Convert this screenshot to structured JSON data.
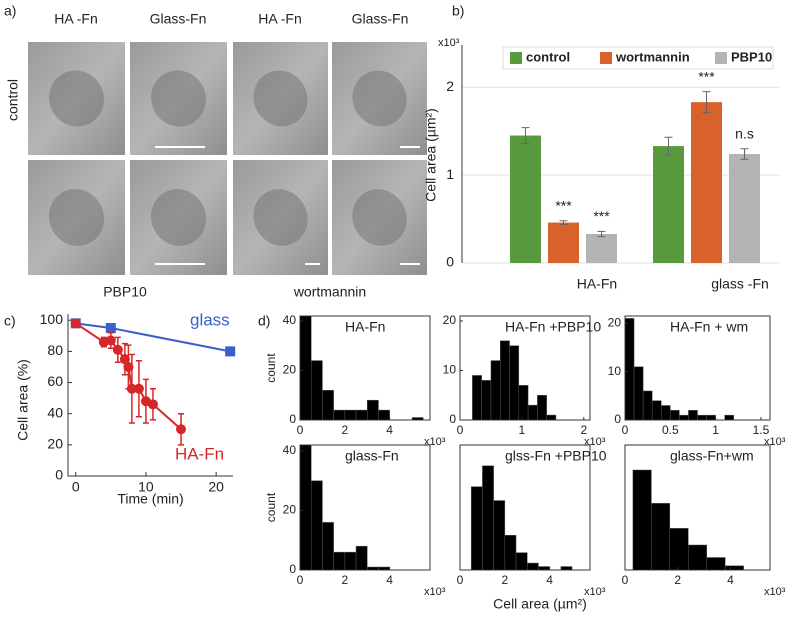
{
  "panel_a": {
    "label": "a)",
    "column_labels": [
      "HA -Fn",
      "Glass-Fn",
      "HA -Fn",
      "Glass-Fn"
    ],
    "row_label": "control",
    "bottom_labels": [
      "PBP10",
      "wortmannin"
    ]
  },
  "panel_d": {
    "label": "d)",
    "xlabel": "Cell area (µm²)"
  },
  "chart_data": [
    {
      "type": "bar",
      "label": "b)",
      "ylabel": "Cell area (µm²)",
      "y_multiplier": "x10³",
      "categories": [
        "HA-Fn",
        "glass -Fn"
      ],
      "series": [
        {
          "name": "control",
          "color": "#5a9a3e",
          "values": [
            1.45,
            1.33
          ],
          "errors": [
            0.09,
            0.1
          ]
        },
        {
          "name": "wortmannin",
          "color": "#d9622b",
          "values": [
            0.46,
            1.83
          ],
          "errors": [
            0.02,
            0.12
          ]
        },
        {
          "name": "PBP10",
          "color": "#b3b3b3",
          "values": [
            0.33,
            1.24
          ],
          "errors": [
            0.03,
            0.06
          ]
        }
      ],
      "annotations": [
        "***",
        "***",
        "***",
        "n.s"
      ],
      "ylim": [
        0,
        2.48
      ],
      "yticks": [
        0,
        1,
        2
      ],
      "grid": true,
      "legend": "top"
    },
    {
      "type": "line",
      "label": "c)",
      "xlabel": "Time (min)",
      "ylabel": "Cell area (%)",
      "series": [
        {
          "name": "glass",
          "color": "#3a5fcd",
          "marker": "square",
          "x": [
            0,
            5,
            22
          ],
          "values": [
            98,
            95,
            80
          ]
        },
        {
          "name": "HA-Fn",
          "color": "#d62728",
          "marker": "circle",
          "x": [
            0,
            4,
            5,
            6,
            7,
            7.5,
            8,
            9,
            10,
            11,
            15
          ],
          "values": [
            98,
            86,
            87,
            81,
            75,
            70,
            56,
            56,
            48,
            46,
            30
          ],
          "errors": [
            null,
            3,
            5,
            8,
            10,
            14,
            22,
            18,
            14,
            10,
            10
          ]
        }
      ],
      "xlim": [
        -1.1,
        22.4
      ],
      "xticks": [
        0,
        10,
        20
      ],
      "ylim": [
        0,
        104
      ],
      "yticks": [
        0,
        20,
        40,
        60,
        80,
        100
      ]
    },
    {
      "type": "histogram",
      "title": "HA-Fn",
      "ylabel": "count",
      "x_multiplier": "x10³",
      "bins": [
        0,
        0.5,
        1,
        1.5,
        2,
        2.5,
        3,
        3.5,
        4,
        4.5,
        5,
        5.5
      ],
      "values": [
        42,
        24,
        12,
        4,
        4,
        4,
        8,
        4,
        0,
        0,
        1
      ],
      "xlim": [
        0,
        5.8
      ],
      "xticks": [
        0,
        2,
        4
      ],
      "ylim": [
        0,
        42
      ],
      "yticks": [
        0,
        20,
        40
      ]
    },
    {
      "type": "histogram",
      "title": "HA-Fn +PBP10",
      "x_multiplier": "x10³",
      "bins": [
        0.2,
        0.35,
        0.5,
        0.65,
        0.8,
        0.95,
        1.1,
        1.25,
        1.4,
        1.55
      ],
      "values": [
        9,
        8,
        12,
        16,
        15,
        7,
        3,
        5,
        1
      ],
      "xlim": [
        0,
        2.1
      ],
      "xticks": [
        0,
        1,
        2
      ],
      "ylim": [
        0,
        21
      ],
      "yticks": [
        0,
        10,
        20
      ]
    },
    {
      "type": "histogram",
      "title": "HA-Fn +   wm",
      "x_multiplier": "x10³",
      "bins": [
        0,
        0.1,
        0.2,
        0.3,
        0.4,
        0.5,
        0.6,
        0.7,
        0.8,
        0.9,
        1,
        1.1,
        1.2
      ],
      "values": [
        21,
        11,
        6,
        4,
        3,
        2,
        1,
        2,
        1,
        1,
        0,
        1
      ],
      "xlim": [
        0,
        1.6
      ],
      "xticks": [
        0,
        0.5,
        1,
        1.5
      ],
      "ylim": [
        0,
        21.5
      ],
      "yticks": [
        0,
        10,
        20
      ]
    },
    {
      "type": "histogram",
      "title": "glass-Fn",
      "ylabel": "count",
      "x_multiplier": "x10³",
      "bins": [
        0,
        0.5,
        1,
        1.5,
        2,
        2.5,
        3,
        3.5,
        4
      ],
      "values": [
        42,
        30,
        16,
        6,
        6,
        8,
        1,
        1
      ],
      "xlim": [
        0,
        5.8
      ],
      "xticks": [
        0,
        2,
        4
      ],
      "ylim": [
        0,
        42
      ],
      "yticks": [
        0,
        20,
        40
      ]
    },
    {
      "type": "histogram",
      "title": "glss-Fn +PBP10",
      "x_multiplier": "x10³",
      "bins": [
        0.5,
        1,
        1.5,
        2,
        2.5,
        3,
        3.5,
        4,
        4.5,
        5
      ],
      "values": [
        24,
        30,
        20,
        10,
        5,
        2,
        1,
        0,
        1
      ],
      "xlim": [
        0,
        5.8
      ],
      "xticks": [
        0,
        2,
        4
      ],
      "ylim": [
        0,
        36
      ]
    },
    {
      "type": "histogram",
      "title": "glass-Fn+wm",
      "x_multiplier": "x10³",
      "bins": [
        0.3,
        1,
        1.7,
        2.4,
        3.1,
        3.8,
        4.5
      ],
      "values": [
        24,
        16,
        10,
        6,
        3,
        1
      ],
      "xlim": [
        0,
        5.5
      ],
      "xticks": [
        0,
        2,
        4
      ],
      "ylim": [
        0,
        30
      ]
    }
  ]
}
